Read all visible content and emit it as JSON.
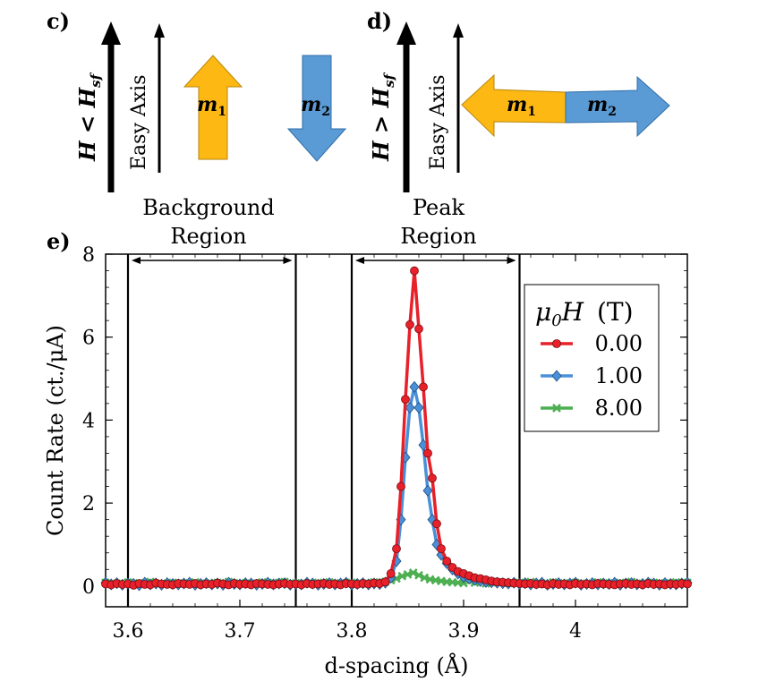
{
  "panel_c": {
    "label": "c)",
    "field_label": "H < H",
    "field_sub": "sf",
    "easy_axis": "Easy Axis",
    "m1": "m",
    "m1_sub": "1",
    "m2": "m",
    "m2_sub": "2",
    "region_line1": "Background",
    "region_line2": "Region"
  },
  "panel_d": {
    "label": "d)",
    "field_label": "H > H",
    "field_sub": "sf",
    "easy_axis": "Easy Axis",
    "m1": "m",
    "m1_sub": "1",
    "m2": "m",
    "m2_sub": "2",
    "region_line1": "Peak",
    "region_line2": "Region"
  },
  "panel_e": {
    "label": "e)"
  },
  "colors": {
    "m1_arrow": "#FDB813",
    "m2_arrow": "#5B9BD5",
    "series_0": "#E8202A",
    "series_1": "#4A90D9",
    "series_2": "#4CAF50"
  },
  "chart_data": {
    "type": "line",
    "xlabel": "d-spacing (Å)",
    "ylabel": "Count Rate (ct./μA)",
    "xlim": [
      3.58,
      4.1
    ],
    "ylim": [
      -0.5,
      8
    ],
    "x_ticks": [
      "3.6",
      "3.7",
      "3.8",
      "3.9",
      "4"
    ],
    "x_tick_values": [
      3.6,
      3.7,
      3.8,
      3.9,
      4.0
    ],
    "y_ticks": [
      "0",
      "2",
      "4",
      "6",
      "8"
    ],
    "y_tick_values": [
      0,
      2,
      4,
      6,
      8
    ],
    "legend_title": "μ0H (T)",
    "legend_title_main": "μ",
    "legend_title_sub": "0",
    "legend_title_rest": "H (T)",
    "region_lines_x": [
      3.6,
      3.75,
      3.8,
      3.95
    ],
    "background_region": [
      3.6,
      3.75
    ],
    "peak_region": [
      3.8,
      3.95
    ],
    "series": [
      {
        "name": "0.00",
        "marker": "circle",
        "x": [
          3.58,
          3.585,
          3.59,
          3.595,
          3.6,
          3.605,
          3.61,
          3.615,
          3.62,
          3.625,
          3.63,
          3.635,
          3.64,
          3.645,
          3.65,
          3.655,
          3.66,
          3.665,
          3.67,
          3.675,
          3.68,
          3.685,
          3.69,
          3.695,
          3.7,
          3.705,
          3.71,
          3.715,
          3.72,
          3.725,
          3.73,
          3.735,
          3.74,
          3.745,
          3.75,
          3.755,
          3.76,
          3.765,
          3.77,
          3.775,
          3.78,
          3.785,
          3.79,
          3.795,
          3.8,
          3.805,
          3.81,
          3.815,
          3.82,
          3.825,
          3.83,
          3.835,
          3.84,
          3.844,
          3.848,
          3.852,
          3.856,
          3.86,
          3.864,
          3.868,
          3.872,
          3.876,
          3.88,
          3.885,
          3.89,
          3.895,
          3.9,
          3.905,
          3.91,
          3.915,
          3.92,
          3.925,
          3.93,
          3.935,
          3.94,
          3.945,
          3.95,
          3.955,
          3.96,
          3.965,
          3.97,
          3.975,
          3.98,
          3.985,
          3.99,
          3.995,
          4.0,
          4.005,
          4.01,
          4.015,
          4.02,
          4.025,
          4.03,
          4.035,
          4.04,
          4.045,
          4.05,
          4.055,
          4.06,
          4.065,
          4.07,
          4.075,
          4.08,
          4.085,
          4.09,
          4.095,
          4.1
        ],
        "y": [
          0.05,
          0.03,
          0.06,
          0.04,
          0.05,
          0.02,
          0.06,
          0.04,
          0.03,
          0.07,
          0.05,
          0.04,
          0.03,
          0.06,
          0.05,
          0.04,
          0.06,
          0.03,
          0.05,
          0.04,
          0.07,
          0.05,
          0.03,
          0.06,
          0.04,
          0.05,
          0.03,
          0.06,
          0.05,
          0.04,
          0.03,
          0.05,
          0.06,
          0.04,
          0.05,
          0.03,
          0.06,
          0.04,
          0.05,
          0.06,
          0.04,
          0.05,
          0.03,
          0.06,
          0.05,
          0.04,
          0.06,
          0.05,
          0.07,
          0.06,
          0.1,
          0.3,
          0.9,
          2.4,
          4.5,
          6.3,
          7.6,
          6.2,
          4.8,
          3.2,
          2.6,
          1.5,
          0.9,
          0.6,
          0.45,
          0.35,
          0.3,
          0.25,
          0.2,
          0.18,
          0.15,
          0.12,
          0.1,
          0.09,
          0.08,
          0.07,
          0.06,
          0.05,
          0.06,
          0.04,
          0.05,
          0.03,
          0.06,
          0.04,
          0.05,
          0.03,
          0.06,
          0.04,
          0.05,
          0.03,
          0.06,
          0.05,
          0.04,
          0.03,
          0.05,
          0.06,
          0.04,
          0.05,
          0.03,
          0.06,
          0.04,
          0.05,
          0.03,
          0.05,
          0.04,
          0.06,
          0.05
        ]
      },
      {
        "name": "1.00",
        "marker": "diamond",
        "x": [
          3.58,
          3.585,
          3.59,
          3.595,
          3.6,
          3.605,
          3.61,
          3.615,
          3.62,
          3.625,
          3.63,
          3.635,
          3.64,
          3.645,
          3.65,
          3.655,
          3.66,
          3.665,
          3.67,
          3.675,
          3.68,
          3.685,
          3.69,
          3.695,
          3.7,
          3.705,
          3.71,
          3.715,
          3.72,
          3.725,
          3.73,
          3.735,
          3.74,
          3.745,
          3.75,
          3.755,
          3.76,
          3.765,
          3.77,
          3.775,
          3.78,
          3.785,
          3.79,
          3.795,
          3.8,
          3.805,
          3.81,
          3.815,
          3.82,
          3.825,
          3.83,
          3.835,
          3.84,
          3.844,
          3.848,
          3.852,
          3.856,
          3.86,
          3.864,
          3.868,
          3.872,
          3.876,
          3.88,
          3.885,
          3.89,
          3.895,
          3.9,
          3.905,
          3.91,
          3.915,
          3.92,
          3.925,
          3.93,
          3.935,
          3.94,
          3.945,
          3.95,
          3.955,
          3.96,
          3.965,
          3.97,
          3.975,
          3.98,
          3.985,
          3.99,
          3.995,
          4.0,
          4.005,
          4.01,
          4.015,
          4.02,
          4.025,
          4.03,
          4.035,
          4.04,
          4.045,
          4.05,
          4.055,
          4.06,
          4.065,
          4.07,
          4.075,
          4.08,
          4.085,
          4.09,
          4.095,
          4.1
        ],
        "y": [
          0.08,
          0.04,
          0.07,
          0.03,
          0.06,
          0.05,
          0.02,
          0.08,
          0.04,
          0.06,
          0.03,
          0.07,
          0.05,
          0.04,
          0.06,
          0.08,
          0.03,
          0.05,
          0.07,
          0.04,
          0.06,
          0.03,
          0.08,
          0.05,
          0.04,
          0.07,
          0.06,
          0.03,
          0.05,
          0.08,
          0.04,
          0.06,
          0.07,
          0.03,
          0.05,
          0.04,
          0.08,
          0.06,
          0.03,
          0.05,
          0.07,
          0.04,
          0.06,
          0.08,
          0.03,
          0.05,
          0.07,
          0.04,
          0.06,
          0.05,
          0.08,
          0.2,
          0.6,
          1.6,
          3.1,
          4.3,
          4.8,
          4.3,
          3.4,
          2.3,
          1.6,
          1.0,
          0.75,
          0.55,
          0.4,
          0.3,
          0.22,
          0.18,
          0.15,
          0.12,
          0.1,
          0.09,
          0.08,
          0.07,
          0.06,
          0.08,
          0.05,
          0.07,
          0.04,
          0.06,
          0.08,
          0.03,
          0.05,
          0.07,
          0.04,
          0.06,
          0.08,
          0.03,
          0.05,
          0.07,
          0.04,
          0.06,
          0.05,
          0.08,
          0.03,
          0.06,
          0.07,
          0.04,
          0.05,
          0.08,
          0.06,
          0.03,
          0.07,
          0.05,
          0.04,
          0.06,
          0.08
        ]
      },
      {
        "name": "8.00",
        "marker": "x",
        "x": [
          3.58,
          3.59,
          3.6,
          3.61,
          3.62,
          3.63,
          3.64,
          3.65,
          3.66,
          3.67,
          3.68,
          3.69,
          3.7,
          3.71,
          3.72,
          3.73,
          3.74,
          3.75,
          3.76,
          3.77,
          3.78,
          3.79,
          3.8,
          3.81,
          3.82,
          3.83,
          3.835,
          3.84,
          3.845,
          3.85,
          3.855,
          3.86,
          3.865,
          3.87,
          3.875,
          3.88,
          3.885,
          3.89,
          3.895,
          3.9,
          3.91,
          3.92,
          3.93,
          3.94,
          3.95,
          3.96,
          3.97,
          3.98,
          3.99,
          4.0,
          4.01,
          4.02,
          4.03,
          4.04,
          4.05,
          4.06,
          4.07,
          4.08,
          4.09,
          4.1
        ],
        "y": [
          0.08,
          0.06,
          0.09,
          0.07,
          0.1,
          0.06,
          0.08,
          0.07,
          0.09,
          0.06,
          0.08,
          0.1,
          0.07,
          0.06,
          0.09,
          0.08,
          0.1,
          0.07,
          0.06,
          0.08,
          0.09,
          0.07,
          0.08,
          0.06,
          0.09,
          0.1,
          0.14,
          0.18,
          0.24,
          0.28,
          0.32,
          0.26,
          0.2,
          0.16,
          0.14,
          0.12,
          0.1,
          0.09,
          0.08,
          0.07,
          0.08,
          0.06,
          0.09,
          0.07,
          0.08,
          0.1,
          0.06,
          0.09,
          0.07,
          0.08,
          0.06,
          0.09,
          0.07,
          0.08,
          0.1,
          0.06,
          0.08,
          0.07,
          0.09,
          0.08
        ]
      }
    ]
  }
}
